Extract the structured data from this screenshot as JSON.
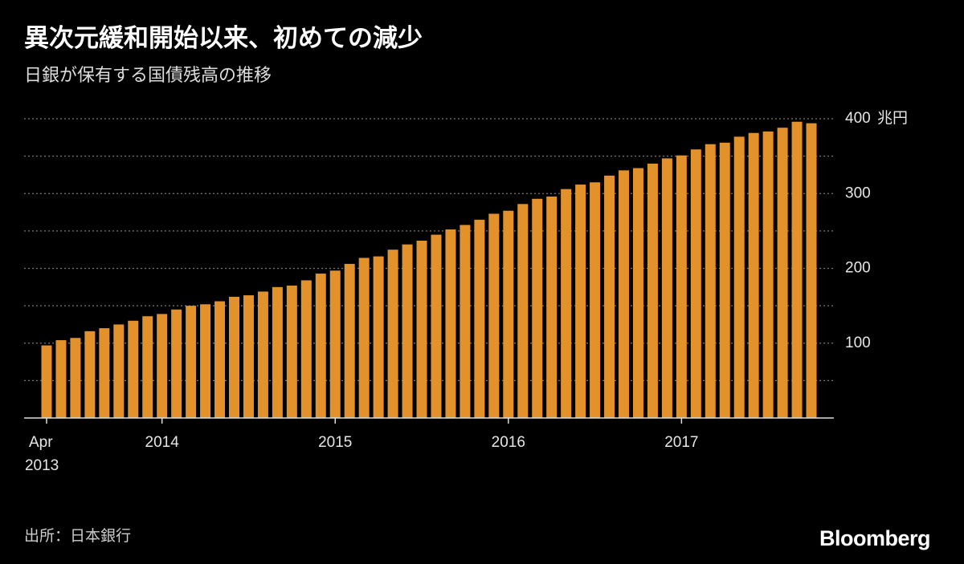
{
  "chart_data": {
    "type": "bar",
    "title": "異次元緩和開始以来、初めての減少",
    "subtitle": "日銀が保有する国債残高の推移",
    "y_unit": "兆円",
    "source": "出所：日本銀行",
    "brand": "Bloomberg",
    "color": "#e3912b",
    "grid": true,
    "first_year_label": "2013",
    "categories": [
      "Apr",
      null,
      null,
      null,
      null,
      null,
      null,
      null,
      "2014",
      null,
      null,
      null,
      null,
      null,
      null,
      null,
      null,
      null,
      null,
      null,
      "2015",
      null,
      null,
      null,
      null,
      null,
      null,
      null,
      null,
      null,
      null,
      null,
      "2016",
      null,
      null,
      null,
      null,
      null,
      null,
      null,
      null,
      null,
      null,
      null,
      "2017",
      null,
      null,
      null,
      null,
      null,
      null,
      null,
      null,
      null
    ],
    "values": [
      97,
      104,
      107,
      116,
      120,
      125,
      130,
      136,
      139,
      145,
      150,
      152,
      156,
      162,
      164,
      169,
      175,
      177,
      184,
      193,
      197,
      206,
      214,
      216,
      225,
      232,
      237,
      245,
      252,
      258,
      265,
      273,
      277,
      286,
      293,
      296,
      306,
      312,
      315,
      324,
      331,
      334,
      340,
      347,
      351,
      359,
      366,
      368,
      376,
      381,
      383,
      388,
      396,
      394
    ],
    "ylim": [
      0,
      400
    ],
    "yticks": [
      100,
      200,
      300,
      400
    ],
    "minor_yticks": [
      50,
      150,
      250,
      350
    ]
  }
}
